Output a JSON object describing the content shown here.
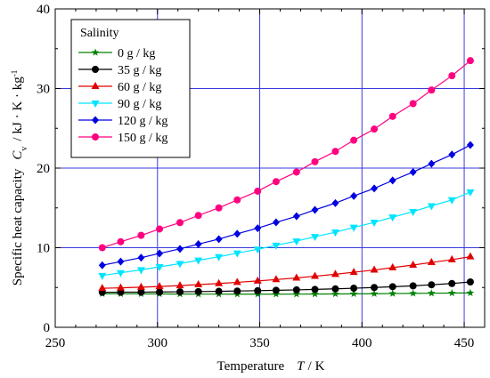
{
  "chart_data": {
    "type": "line",
    "xlabel": "Temperature",
    "xlabel_symbol": "T",
    "xlabel_unit": "K",
    "ylabel": "Specific heat capacity",
    "ylabel_symbol": "C",
    "ylabel_subscript": "v",
    "ylabel_unit": "kJ · K · kg",
    "ylabel_unit_superscript": "-1",
    "xlim": [
      250,
      460
    ],
    "ylim": [
      0,
      40
    ],
    "xticks": [
      250,
      300,
      350,
      400,
      450
    ],
    "yticks": [
      0,
      10,
      20,
      30,
      40
    ],
    "grid": true,
    "grid_color": "#3a3adf",
    "legend": {
      "title": "Salinity",
      "placement": "top-left"
    },
    "x": [
      273,
      282,
      292,
      301,
      311,
      320,
      330,
      339,
      349,
      358,
      368,
      377,
      387,
      396,
      406,
      415,
      425,
      434,
      444,
      453
    ],
    "series": [
      {
        "name": "0 g / kg",
        "color": "#008000",
        "marker": "star",
        "values": [
          4.22,
          4.21,
          4.2,
          4.19,
          4.18,
          4.17,
          4.17,
          4.16,
          4.16,
          4.16,
          4.17,
          4.18,
          4.19,
          4.2,
          4.22,
          4.24,
          4.26,
          4.28,
          4.3,
          4.32
        ]
      },
      {
        "name": "35 g / kg",
        "color": "#000000",
        "marker": "circle",
        "values": [
          4.4,
          4.41,
          4.42,
          4.44,
          4.46,
          4.49,
          4.52,
          4.56,
          4.6,
          4.65,
          4.7,
          4.76,
          4.83,
          4.91,
          5.0,
          5.1,
          5.21,
          5.34,
          5.5,
          5.7
        ]
      },
      {
        "name": "60 g / kg",
        "color": "#e00000",
        "marker": "triangle-up",
        "values": [
          4.9,
          4.96,
          5.04,
          5.13,
          5.24,
          5.36,
          5.5,
          5.65,
          5.82,
          6.0,
          6.2,
          6.42,
          6.66,
          6.92,
          7.2,
          7.5,
          7.82,
          8.15,
          8.5,
          8.87
        ]
      },
      {
        "name": "90 g / kg",
        "color": "#00e5ff",
        "marker": "triangle-down",
        "values": [
          6.5,
          6.85,
          7.22,
          7.6,
          8.0,
          8.42,
          8.86,
          9.32,
          9.8,
          10.3,
          10.83,
          11.38,
          11.95,
          12.55,
          13.18,
          13.84,
          14.53,
          15.25,
          16.0,
          17.0
        ]
      },
      {
        "name": "120 g / kg",
        "color": "#0000e0",
        "marker": "diamond",
        "values": [
          7.8,
          8.25,
          8.75,
          9.28,
          9.85,
          10.45,
          11.08,
          11.75,
          12.45,
          13.18,
          13.95,
          14.75,
          15.6,
          16.5,
          17.45,
          18.45,
          19.5,
          20.55,
          21.7,
          22.9
        ]
      },
      {
        "name": "150 g / kg",
        "color": "#ff007f",
        "marker": "circle",
        "values": [
          10.0,
          10.75,
          11.55,
          12.35,
          13.15,
          14.05,
          15.0,
          16.0,
          17.1,
          18.3,
          19.5,
          20.8,
          22.1,
          23.5,
          24.9,
          26.5,
          28.1,
          29.8,
          31.6,
          33.5
        ]
      }
    ]
  }
}
